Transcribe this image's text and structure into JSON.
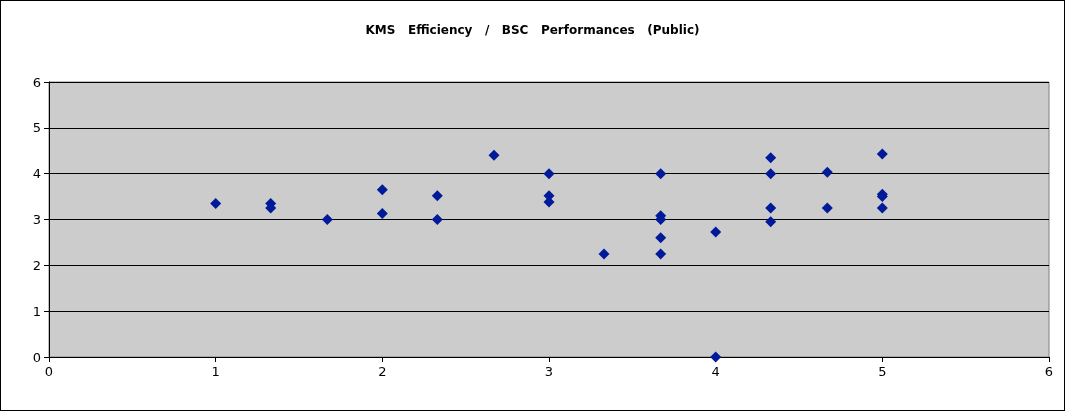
{
  "chart_data": {
    "type": "scatter",
    "title": "KMS   Efficiency   /   BSC   Performances   (Public)",
    "x": [
      1,
      1.33,
      1.33,
      1.67,
      2,
      2,
      2.33,
      2.33,
      2.67,
      3,
      3,
      3,
      3.33,
      3.67,
      3.67,
      3.67,
      3.67,
      3.67,
      4,
      4,
      4.33,
      4.33,
      4.33,
      4.33,
      4.67,
      4.67,
      5,
      5,
      5,
      5
    ],
    "series": [
      {
        "color": "#001a99",
        "values": [
          3.35,
          3.35,
          3.25,
          3.0,
          3.65,
          3.13,
          3.52,
          3.0,
          4.4,
          4.0,
          3.52,
          3.38,
          2.25,
          4.0,
          3.08,
          3.0,
          2.6,
          2.25,
          2.73,
          0,
          4.35,
          4.0,
          3.25,
          2.95,
          4.03,
          3.25,
          4.43,
          3.55,
          3.5,
          3.25
        ]
      }
    ],
    "xlim": [
      0,
      6
    ],
    "xticks": [
      0,
      1,
      2,
      3,
      4,
      5,
      6
    ],
    "ylim": [
      0,
      6
    ],
    "yticks": [
      0,
      1,
      2,
      3,
      4,
      5,
      6
    ],
    "grid": "y",
    "marker": "diamond"
  }
}
